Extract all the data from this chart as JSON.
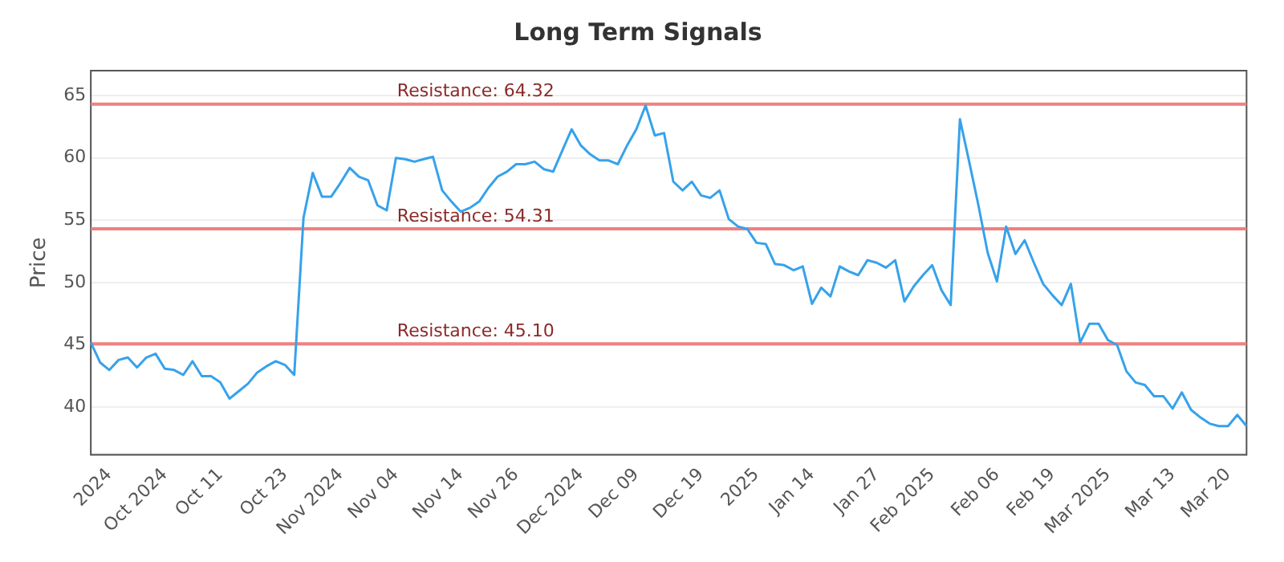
{
  "chart_data": {
    "type": "line",
    "title": "Long Term Signals",
    "ylabel": "Price",
    "categories": [
      null,
      null,
      "2024",
      null,
      null,
      null,
      null,
      null,
      "Oct 2024",
      null,
      null,
      null,
      null,
      null,
      "Oct 11",
      null,
      null,
      null,
      null,
      null,
      null,
      "Oct 23",
      null,
      null,
      null,
      null,
      null,
      "Nov 2024",
      null,
      null,
      null,
      null,
      null,
      "Nov 04",
      null,
      null,
      null,
      null,
      null,
      null,
      "Nov 14",
      null,
      null,
      null,
      null,
      null,
      "Nov 26",
      null,
      null,
      null,
      null,
      null,
      null,
      "Dec 2024",
      null,
      null,
      null,
      null,
      null,
      "Dec 09",
      null,
      null,
      null,
      null,
      null,
      null,
      "Dec 19",
      null,
      null,
      null,
      null,
      null,
      "2025",
      null,
      null,
      null,
      null,
      null,
      "Jan 14",
      null,
      null,
      null,
      null,
      null,
      null,
      "Jan 27",
      null,
      null,
      null,
      null,
      null,
      "Feb 2025",
      null,
      null,
      null,
      null,
      null,
      null,
      "Feb 06",
      null,
      null,
      null,
      null,
      null,
      "Feb 19",
      null,
      null,
      null,
      null,
      null,
      "Mar 2025",
      null,
      null,
      null,
      null,
      null,
      null,
      "Mar 13",
      null,
      null,
      null,
      null,
      null,
      "Mar 20",
      null,
      null
    ],
    "series": [
      {
        "color": "#36a2eb",
        "values": [
          45.2,
          43.6,
          43.0,
          43.8,
          44.0,
          43.2,
          44.0,
          44.3,
          43.1,
          43.0,
          42.6,
          43.7,
          42.5,
          42.5,
          42.0,
          40.7,
          41.3,
          41.9,
          42.8,
          43.3,
          43.7,
          43.4,
          42.6,
          55.2,
          58.8,
          56.9,
          56.9,
          58.0,
          59.2,
          58.5,
          58.2,
          56.2,
          55.8,
          60.0,
          59.9,
          59.7,
          59.9,
          60.1,
          57.4,
          56.5,
          55.7,
          56.0,
          56.5,
          57.6,
          58.5,
          58.9,
          59.5,
          59.5,
          59.7,
          59.1,
          58.9,
          60.6,
          62.3,
          61.0,
          60.3,
          59.8,
          59.8,
          59.5,
          61.0,
          62.3,
          64.2,
          61.8,
          62.0,
          58.1,
          57.4,
          58.1,
          57.0,
          56.8,
          57.4,
          55.1,
          54.5,
          54.3,
          53.2,
          53.1,
          51.5,
          51.4,
          51.0,
          51.3,
          48.3,
          49.6,
          48.9,
          51.3,
          50.9,
          50.6,
          51.8,
          51.6,
          51.2,
          51.8,
          48.5,
          49.7,
          50.6,
          51.4,
          49.4,
          48.2,
          63.1,
          59.7,
          56.2,
          52.4,
          50.1,
          54.5,
          52.3,
          53.4,
          51.6,
          49.9,
          49.0,
          48.2,
          49.9,
          45.2,
          46.7,
          46.7,
          45.4,
          45.0,
          42.9,
          42.0,
          41.8,
          40.9,
          40.9,
          39.9,
          41.2,
          39.8,
          39.2,
          38.7,
          38.5,
          38.5,
          39.4,
          38.5
        ]
      }
    ],
    "ylim": [
      36.2,
      67
    ],
    "yticks": [
      40,
      45,
      50,
      55,
      60,
      65
    ],
    "grid": "y",
    "legend": false,
    "marker": "none",
    "line_style": "solid",
    "ref_lines": [
      {
        "axis": "y",
        "value": 64.32,
        "label": "Resistance: 64.32",
        "color": "#f08080"
      },
      {
        "axis": "y",
        "value": 54.31,
        "label": "Resistance: 54.31",
        "color": "#f08080"
      },
      {
        "axis": "y",
        "value": 45.1,
        "label": "Resistance: 45.10",
        "color": "#f08080"
      }
    ]
  }
}
